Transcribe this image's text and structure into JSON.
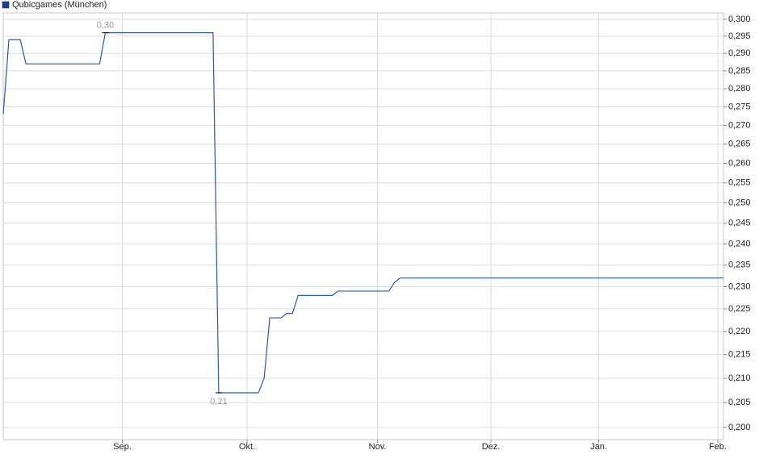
{
  "chart_data": {
    "type": "line",
    "x": [
      0,
      1,
      3,
      4,
      17,
      18,
      37,
      38,
      45,
      46,
      47,
      49,
      50,
      51,
      52,
      58,
      59,
      68,
      69,
      70,
      127
    ],
    "series": [
      {
        "name": "Qubicgames (München)",
        "color": "#2a5aa8",
        "values": [
          0.273,
          0.294,
          0.294,
          0.287,
          0.287,
          0.296,
          0.296,
          0.207,
          0.207,
          0.21,
          0.223,
          0.223,
          0.224,
          0.224,
          0.228,
          0.228,
          0.229,
          0.229,
          0.231,
          0.232,
          0.232
        ],
        "value_labels": [
          null,
          null,
          null,
          null,
          null,
          "0,30",
          null,
          "0,21",
          null,
          null,
          null,
          null,
          null,
          null,
          null,
          null,
          null,
          null,
          null,
          null,
          null
        ]
      }
    ],
    "xlim": [
      0,
      127
    ],
    "xticks": [
      {
        "value": 21,
        "label": "Sep."
      },
      {
        "value": 43,
        "label": "Okt."
      },
      {
        "value": 66,
        "label": "Nov."
      },
      {
        "value": 86,
        "label": "Dez."
      },
      {
        "value": 105,
        "label": "Jan."
      },
      {
        "value": 126,
        "label": "Feb."
      }
    ],
    "ylim": [
      0.1976,
      0.3019
    ],
    "log": true,
    "grid": true,
    "legend": "top-left",
    "yticks": [
      {
        "value": 0.2,
        "label": "0,200"
      },
      {
        "value": 0.205,
        "label": "0,205"
      },
      {
        "value": 0.21,
        "label": "0,210"
      },
      {
        "value": 0.215,
        "label": "0,215"
      },
      {
        "value": 0.22,
        "label": "0,220"
      },
      {
        "value": 0.225,
        "label": "0,225"
      },
      {
        "value": 0.23,
        "label": "0,230"
      },
      {
        "value": 0.235,
        "label": "0,235"
      },
      {
        "value": 0.24,
        "label": "0,240"
      },
      {
        "value": 0.245,
        "label": "0,245"
      },
      {
        "value": 0.25,
        "label": "0,250"
      },
      {
        "value": 0.255,
        "label": "0,255"
      },
      {
        "value": 0.26,
        "label": "0,260"
      },
      {
        "value": 0.265,
        "label": "0,265"
      },
      {
        "value": 0.27,
        "label": "0,270"
      },
      {
        "value": 0.275,
        "label": "0,275"
      },
      {
        "value": 0.28,
        "label": "0,280"
      },
      {
        "value": 0.285,
        "label": "0,285"
      },
      {
        "value": 0.29,
        "label": "0,290"
      },
      {
        "value": 0.295,
        "label": "0,295"
      },
      {
        "value": 0.3,
        "label": "0,300"
      }
    ]
  }
}
